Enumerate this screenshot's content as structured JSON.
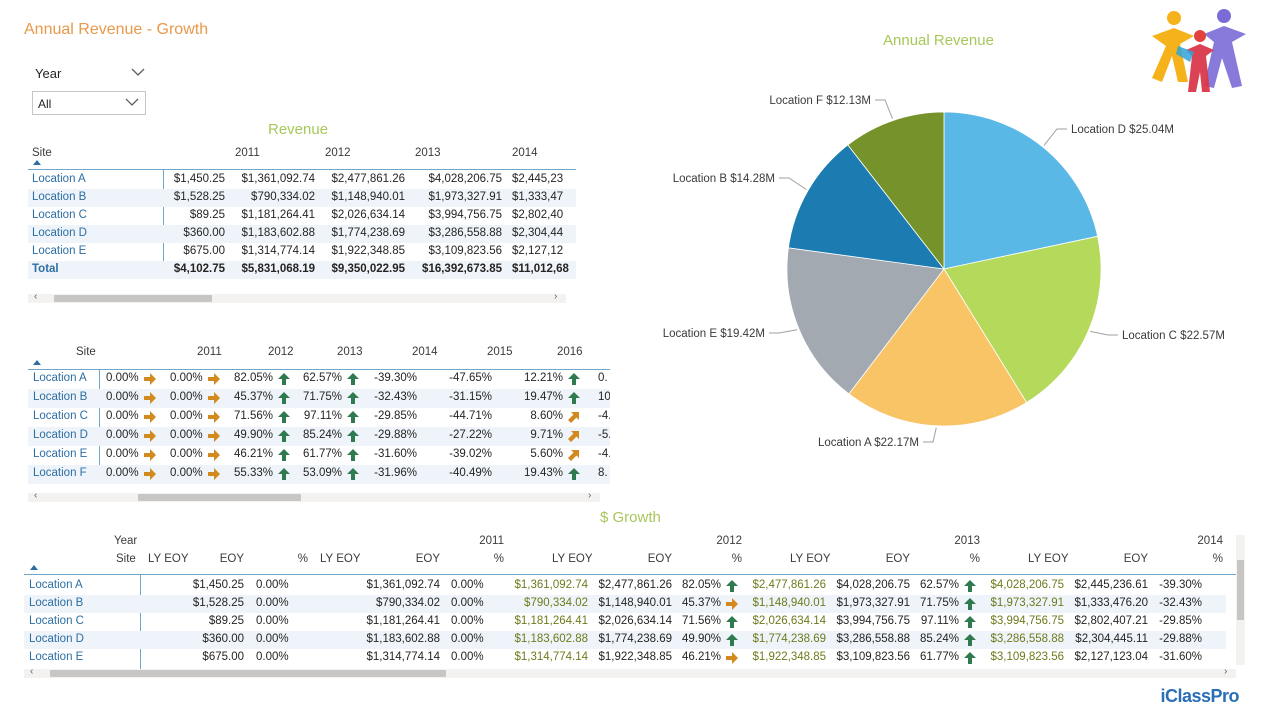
{
  "page_title": "Annual Revenue - Growth",
  "slicer": {
    "label": "Year",
    "value": "All"
  },
  "revenue_table": {
    "title": "Revenue",
    "columns": [
      "Site",
      "2011",
      "2012",
      "2013",
      "2014"
    ],
    "rows": [
      {
        "site": "Location A",
        "first": "$1,450.25",
        "v2011": "$1,361,092.74",
        "v2012": "$2,477,861.26",
        "v2013": "$4,028,206.75",
        "v2014": "$2,445,23"
      },
      {
        "site": "Location B",
        "first": "$1,528.25",
        "v2011": "$790,334.02",
        "v2012": "$1,148,940.01",
        "v2013": "$1,973,327.91",
        "v2014": "$1,333,47"
      },
      {
        "site": "Location C",
        "first": "$89.25",
        "v2011": "$1,181,264.41",
        "v2012": "$2,026,634.14",
        "v2013": "$3,994,756.75",
        "v2014": "$2,802,40"
      },
      {
        "site": "Location D",
        "first": "$360.00",
        "v2011": "$1,183,602.88",
        "v2012": "$1,774,238.69",
        "v2013": "$3,286,558.88",
        "v2014": "$2,304,44"
      },
      {
        "site": "Location E",
        "first": "$675.00",
        "v2011": "$1,314,774.14",
        "v2012": "$1,922,348.85",
        "v2013": "$3,109,823.56",
        "v2014": "$2,127,12"
      }
    ],
    "total": {
      "site": "Total",
      "first": "$4,102.75",
      "v2011": "$5,831,068.19",
      "v2012": "$9,350,022.95",
      "v2013": "$16,392,673.85",
      "v2014": "$11,012,68"
    }
  },
  "growth_pct_table": {
    "columns": [
      "Site",
      "2011",
      "2012",
      "2013",
      "2014",
      "2015",
      "2016"
    ],
    "rows": [
      {
        "site": "Location A",
        "c0": "0.00%",
        "a0": "right",
        "c1": "0.00%",
        "a1": "right",
        "c2": "82.05%",
        "a2": "up",
        "c3": "62.57%",
        "a3": "up",
        "c4": "-39.30%",
        "c5": "-47.65%",
        "c6": "12.21%",
        "a6": "up",
        "c7": "0."
      },
      {
        "site": "Location B",
        "c0": "0.00%",
        "a0": "right",
        "c1": "0.00%",
        "a1": "right",
        "c2": "45.37%",
        "a2": "up",
        "c3": "71.75%",
        "a3": "up",
        "c4": "-32.43%",
        "c5": "-31.15%",
        "c6": "19.47%",
        "a6": "up",
        "c7": "10."
      },
      {
        "site": "Location C",
        "c0": "0.00%",
        "a0": "right",
        "c1": "0.00%",
        "a1": "right",
        "c2": "71.56%",
        "a2": "up",
        "c3": "97.11%",
        "a3": "up",
        "c4": "-29.85%",
        "c5": "-44.71%",
        "c6": "8.60%",
        "a6": "diag",
        "c7": "-4."
      },
      {
        "site": "Location D",
        "c0": "0.00%",
        "a0": "right",
        "c1": "0.00%",
        "a1": "right",
        "c2": "49.90%",
        "a2": "up",
        "c3": "85.24%",
        "a3": "up",
        "c4": "-29.88%",
        "c5": "-27.22%",
        "c6": "9.71%",
        "a6": "diag",
        "c7": "-5."
      },
      {
        "site": "Location E",
        "c0": "0.00%",
        "a0": "right",
        "c1": "0.00%",
        "a1": "right",
        "c2": "46.21%",
        "a2": "up",
        "c3": "61.77%",
        "a3": "up",
        "c4": "-31.60%",
        "c5": "-39.02%",
        "c6": "5.60%",
        "a6": "diag",
        "c7": "-4."
      },
      {
        "site": "Location F",
        "c0": "0.00%",
        "a0": "right",
        "c1": "0.00%",
        "a1": "right",
        "c2": "55.33%",
        "a2": "up",
        "c3": "53.09%",
        "a3": "up",
        "c4": "-31.96%",
        "c5": "-40.49%",
        "c6": "19.43%",
        "a6": "up",
        "c7": "8."
      }
    ]
  },
  "dollar_growth": {
    "title": "$ Growth",
    "year_label": "Year",
    "site_label": "Site",
    "years": [
      "2011",
      "2012",
      "2013",
      "2014"
    ],
    "sub_headers": {
      "ly": "LY EOY",
      "eoy": "EOY",
      "pct": "%"
    },
    "rows": [
      {
        "site": "Location A",
        "c": [
          "$1,450.25",
          "0.00%",
          "$1,361,092.74",
          "0.00%",
          "$1,361,092.74",
          "$2,477,861.26",
          "82.05%",
          "$2,477,861.26",
          "$4,028,206.75",
          "62.57%",
          "$4,028,206.75",
          "$2,445,236.61",
          "-39.30%"
        ],
        "arrows": [
          "up",
          "up"
        ]
      },
      {
        "site": "Location B",
        "c": [
          "$1,528.25",
          "0.00%",
          "$790,334.02",
          "0.00%",
          "$790,334.02",
          "$1,148,940.01",
          "45.37%",
          "$1,148,940.01",
          "$1,973,327.91",
          "71.75%",
          "$1,973,327.91",
          "$1,333,476.20",
          "-32.43%"
        ],
        "arrows": [
          "right",
          "up"
        ]
      },
      {
        "site": "Location C",
        "c": [
          "$89.25",
          "0.00%",
          "$1,181,264.41",
          "0.00%",
          "$1,181,264.41",
          "$2,026,634.14",
          "71.56%",
          "$2,026,634.14",
          "$3,994,756.75",
          "97.11%",
          "$3,994,756.75",
          "$2,802,407.21",
          "-29.85%"
        ],
        "arrows": [
          "up",
          "up"
        ]
      },
      {
        "site": "Location D",
        "c": [
          "$360.00",
          "0.00%",
          "$1,183,602.88",
          "0.00%",
          "$1,183,602.88",
          "$1,774,238.69",
          "49.90%",
          "$1,774,238.69",
          "$3,286,558.88",
          "85.24%",
          "$3,286,558.88",
          "$2,304,445.11",
          "-29.88%"
        ],
        "arrows": [
          "up",
          "up"
        ]
      },
      {
        "site": "Location E",
        "c": [
          "$675.00",
          "0.00%",
          "$1,314,774.14",
          "0.00%",
          "$1,314,774.14",
          "$1,922,348.85",
          "46.21%",
          "$1,922,348.85",
          "$3,109,823.56",
          "61.77%",
          "$3,109,823.56",
          "$2,127,123.04",
          "-31.60%"
        ],
        "arrows": [
          "right",
          "up"
        ]
      }
    ]
  },
  "chart_data": {
    "type": "pie",
    "title": "Annual Revenue",
    "slices": [
      {
        "label": "Location D $25.04M",
        "name": "Location D",
        "value": 25.04,
        "color": "#5ab8e6"
      },
      {
        "label": "Location C $22.57M",
        "name": "Location C",
        "value": 22.57,
        "color": "#b5d95a"
      },
      {
        "label": "Location A $22.17M",
        "name": "Location A",
        "value": 22.17,
        "color": "#f8c466"
      },
      {
        "label": "Location E $19.42M",
        "name": "Location E",
        "value": 19.42,
        "color": "#a3a9b0"
      },
      {
        "label": "Location B $14.28M",
        "name": "Location B",
        "value": 14.28,
        "color": "#1c7bb0"
      },
      {
        "label": "Location F $12.13M",
        "name": "Location F",
        "value": 12.13,
        "color": "#76922a"
      }
    ]
  },
  "colors": {
    "title": "#e8994a",
    "section": "#a8c75a",
    "link": "#2d6ea3",
    "arrow_up": "#2f7a4f",
    "arrow_side": "#d28a1f"
  },
  "brand": {
    "name": "iClassPro"
  }
}
